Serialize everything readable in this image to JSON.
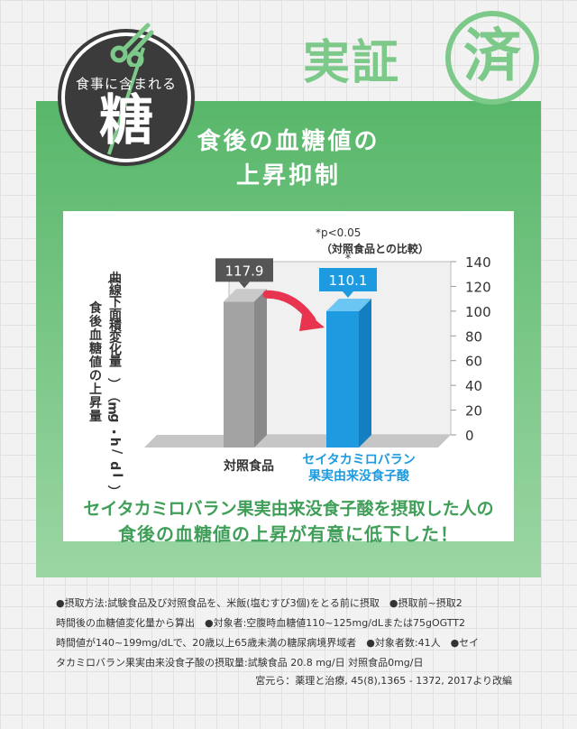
{
  "badge": {
    "small_text": "食事に含まれる",
    "big_text": "糖"
  },
  "stamp": {
    "text": "実証",
    "circle_char": "済"
  },
  "title": {
    "line1": "食後の血糖値の",
    "line2": "上昇抑制"
  },
  "colors": {
    "green_dark": "#58b76a",
    "green_light": "#9bd6a3",
    "accent_text": "#3f9f58",
    "control_bar": "#a3a3a3",
    "test_bar": "#1e9be0",
    "arrow": "#e8344e"
  },
  "chart_data": {
    "type": "bar",
    "categories": [
      "対照食品",
      "セイタカミロバラン\n果実由来没食子酸"
    ],
    "values": [
      117.9,
      110.1
    ],
    "value_labels": [
      "117.9",
      "110.1"
    ],
    "ylabel": "食後血糖値の上昇量",
    "ylabel_unit": "（曲線下面積変化量）（mg・h/dl）",
    "ylim": [
      0,
      140
    ],
    "yticks": [
      0,
      20,
      40,
      60,
      80,
      100,
      120,
      140
    ],
    "y_axis_side": "right",
    "significance_mark": "*",
    "significance_note": [
      "*p<0.05",
      "（対照食品との比較）"
    ],
    "grid": false
  },
  "result": {
    "line1": "セイタカミロバラン果実由来没食子酸を摂取した人の",
    "line2": "食後の血糖値の上昇が有意に低下した！"
  },
  "notes": {
    "line1": "●摂取方法:試験食品及び対照食品を、米飯(塩むすび3個)をとる前に摂取　●摂取前~摂取2",
    "line2": "時間後の血糖値変化量から算出　●対象者:空腹時血糖値110~125mg/dLまたは75gOGTT2",
    "line3": "時間値が140~199mg/dLで、20歳以上65歳未満の糖尿病境界域者　●対象者数:41人　●セイ",
    "line4": "タカミロバラン果実由来没食子酸の摂取量:試験食品 20.8 mg/日 対照食品0mg/日",
    "source": "宮元ら：薬理と治療, 45(8),1365 - 1372, 2017より改編"
  }
}
